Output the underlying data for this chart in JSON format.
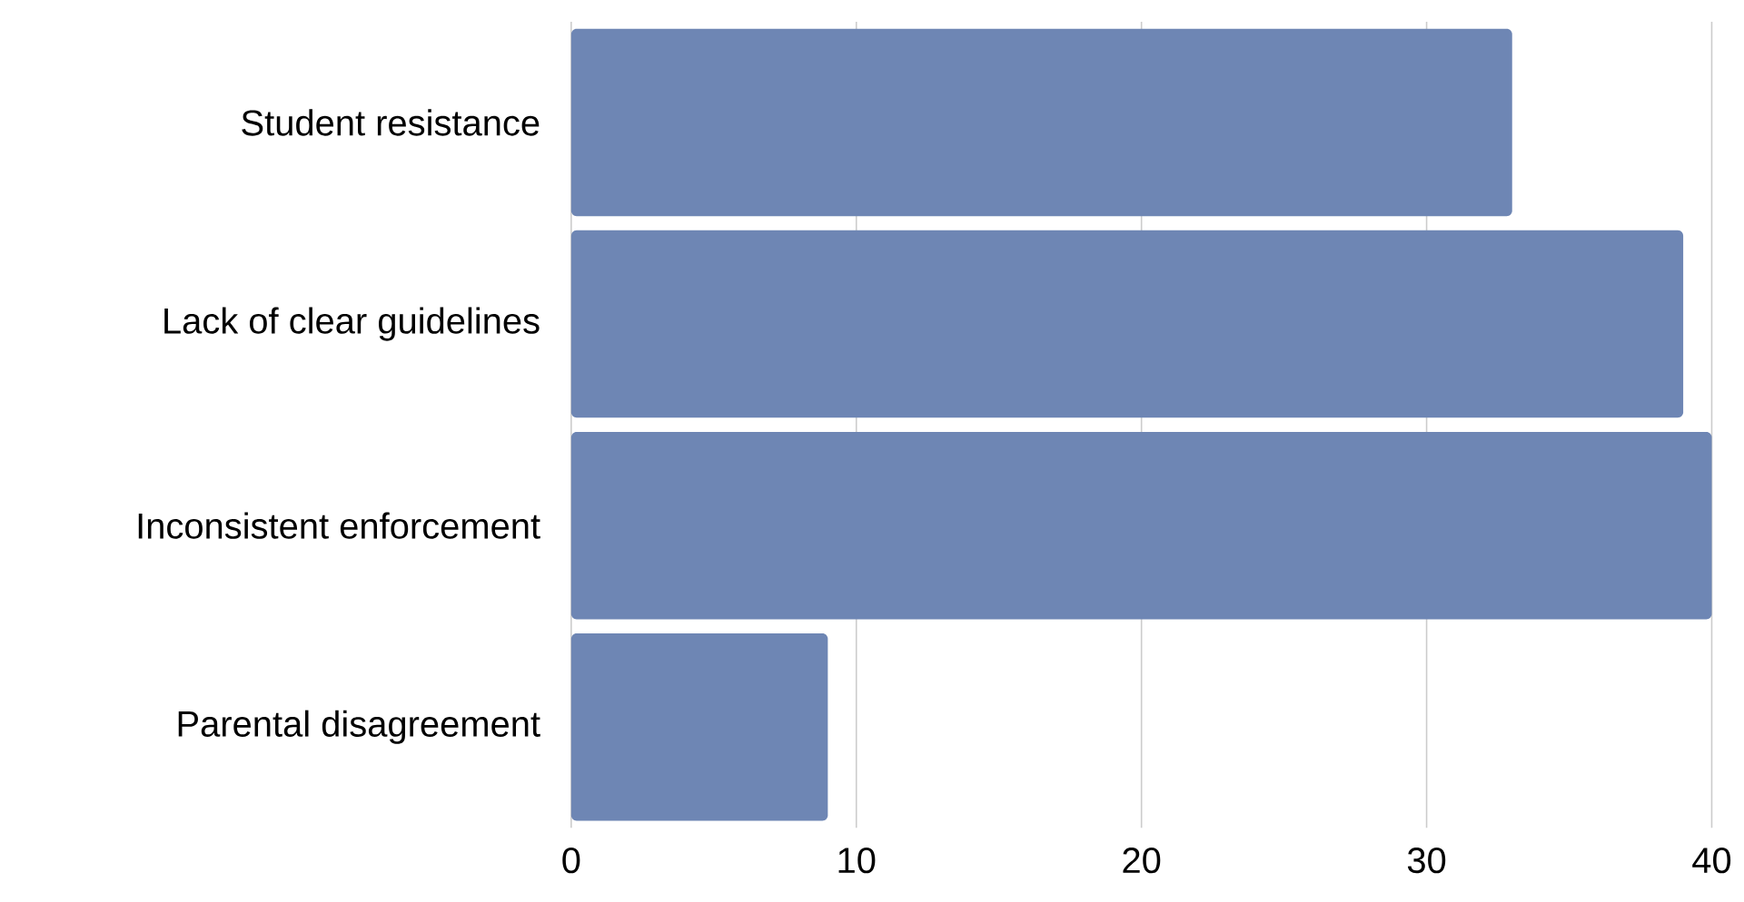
{
  "chart_data": {
    "type": "bar",
    "orientation": "horizontal",
    "categories": [
      "Student resistance",
      "Lack of clear guidelines",
      "Inconsistent enforcement",
      "Parental disagreement"
    ],
    "values": [
      33,
      39,
      40,
      9
    ],
    "color": "#6e86b4",
    "xlim": [
      0,
      40
    ],
    "xticks": [
      0,
      10,
      20,
      30,
      40
    ],
    "grid": "x"
  }
}
